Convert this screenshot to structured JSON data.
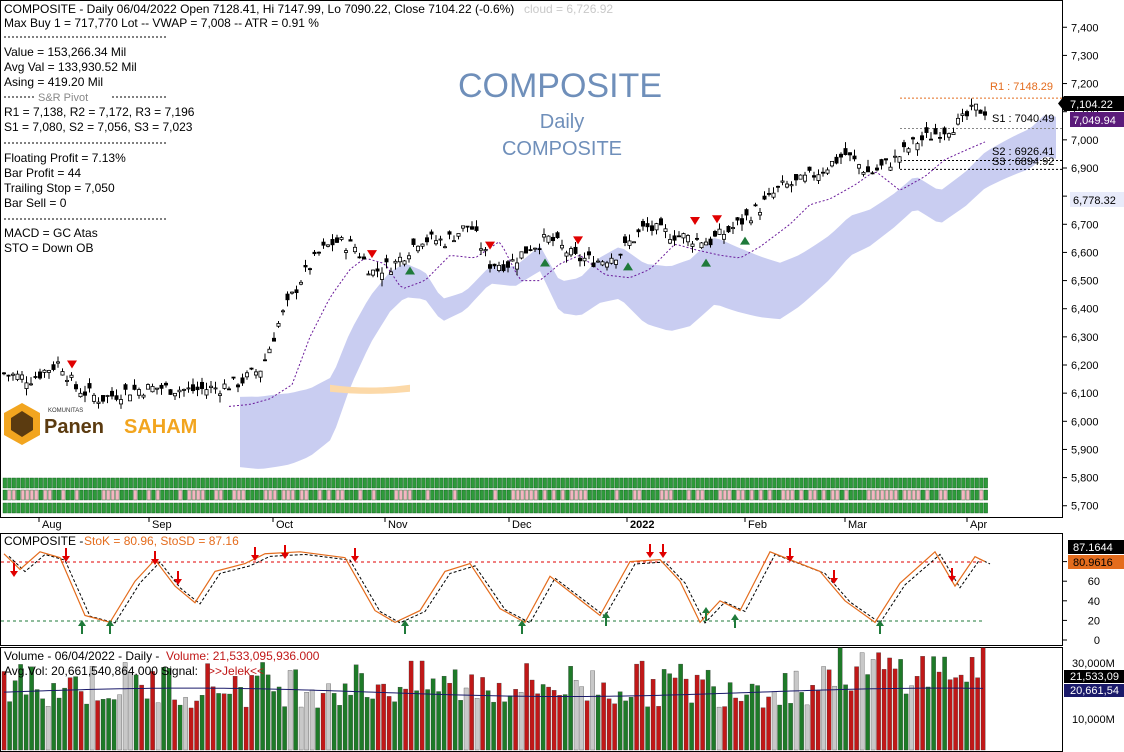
{
  "header": {
    "line1": "COMPOSITE - Daily 06/04/2022 Open 7128.41, Hi 7147.99, Lo 7090.22, Close 7104.22 (-0.6%)",
    "cloud_text": "cloud = 6,726.92",
    "line2": "Max Buy 1 = 717,770 Lot  --  VWAP = 7,008  --  ATR = 0.91 %"
  },
  "stats": [
    "Value = 153,266.34 Mil",
    "Avg Val = 133,930.52 Mil",
    "Asing = 419.20 Mil",
    "S&R Pivot",
    "R1 = 7,138, R2 = 7,172, R3 = 7,196",
    "S1 = 7,080, S2 = 7,056, S3 = 7,023",
    "Floating Profit = 7.13%",
    "Bar Profit = 44",
    "Trailing Stop = 7,050",
    "Bar Sell = 0",
    "MACD =  GC Atas",
    "STO  =  Down OB"
  ],
  "watermark": {
    "title": "COMPOSITE",
    "interval": "Daily",
    "symbol": "COMPOSITE"
  },
  "logo": {
    "small": "KOMUNITAS",
    "part1": "Panen",
    "part2": "SAHAM"
  },
  "levels": {
    "r1": "R1 : 7148.29",
    "s1": "S1 : 7040.49",
    "s2": "S2 : 6926.41",
    "s3": "S3 : 6894.92"
  },
  "price_axis": {
    "ticks": [
      "7,400",
      "7,300",
      "7,200",
      "7,100",
      "7,000",
      "6,900",
      "6,800",
      "6,700",
      "6,600",
      "6,500",
      "6,400",
      "6,300",
      "6,200",
      "6,100",
      "6,000",
      "5,900",
      "5,800",
      "5,700"
    ],
    "badge_close": "7,104.22",
    "badge_stop": "7,049.94",
    "badge_cloud": "6,778.32"
  },
  "months": [
    "Aug",
    "Sep",
    "Oct",
    "Nov",
    "Dec",
    "2022",
    "Feb",
    "Mar",
    "Apr"
  ],
  "stoch": {
    "title_left": "COMPOSITE - ",
    "title_k": "StoK = 80.96, StoSD = 87.16",
    "ticks": [
      "80",
      "60",
      "40",
      "20",
      "0"
    ],
    "badge_sd": "87.1644",
    "badge_k": "80.9616"
  },
  "volume": {
    "line1_left": "Volume - 06/04/2022 - Daily - ",
    "line1_right": "Volume: 21,533,095,936.000",
    "line2_left": "Avg.Vol: 20,661,540,864.000   Signal: ",
    "line2_right": ">>Jelek<<",
    "ticks": [
      "30,000M",
      "10,000M"
    ],
    "badge_vol": "21,533,09",
    "badge_avg": "20,661,54"
  },
  "colors": {
    "up": "#ffffff",
    "down": "#000000",
    "cloud": "#c9cdf1",
    "cloud_bear": "#fcd9a8",
    "stok": "#e46c1d",
    "signal_down": "#e00000",
    "signal_up": "#1f7a3a",
    "vol_up": "#1e7a28",
    "vol_down": "#c01818",
    "vol_neutral": "#c8c8c8"
  },
  "chart_data": {
    "type": "candlestick",
    "y_range": [
      5660,
      7440
    ],
    "current_close": 7104.22,
    "trailing_stop": 7049.94,
    "cloud_value": 6778.32,
    "pivot_levels": {
      "R1": 7148.29,
      "S1": 7040.49,
      "S2": 6926.41,
      "S3": 6894.92
    },
    "stochastic": {
      "StoK": 80.96,
      "StoSD": 87.16,
      "overbought": 80,
      "oversold": 20
    },
    "volume": {
      "last": 21533095936,
      "average": 20661540864
    }
  }
}
